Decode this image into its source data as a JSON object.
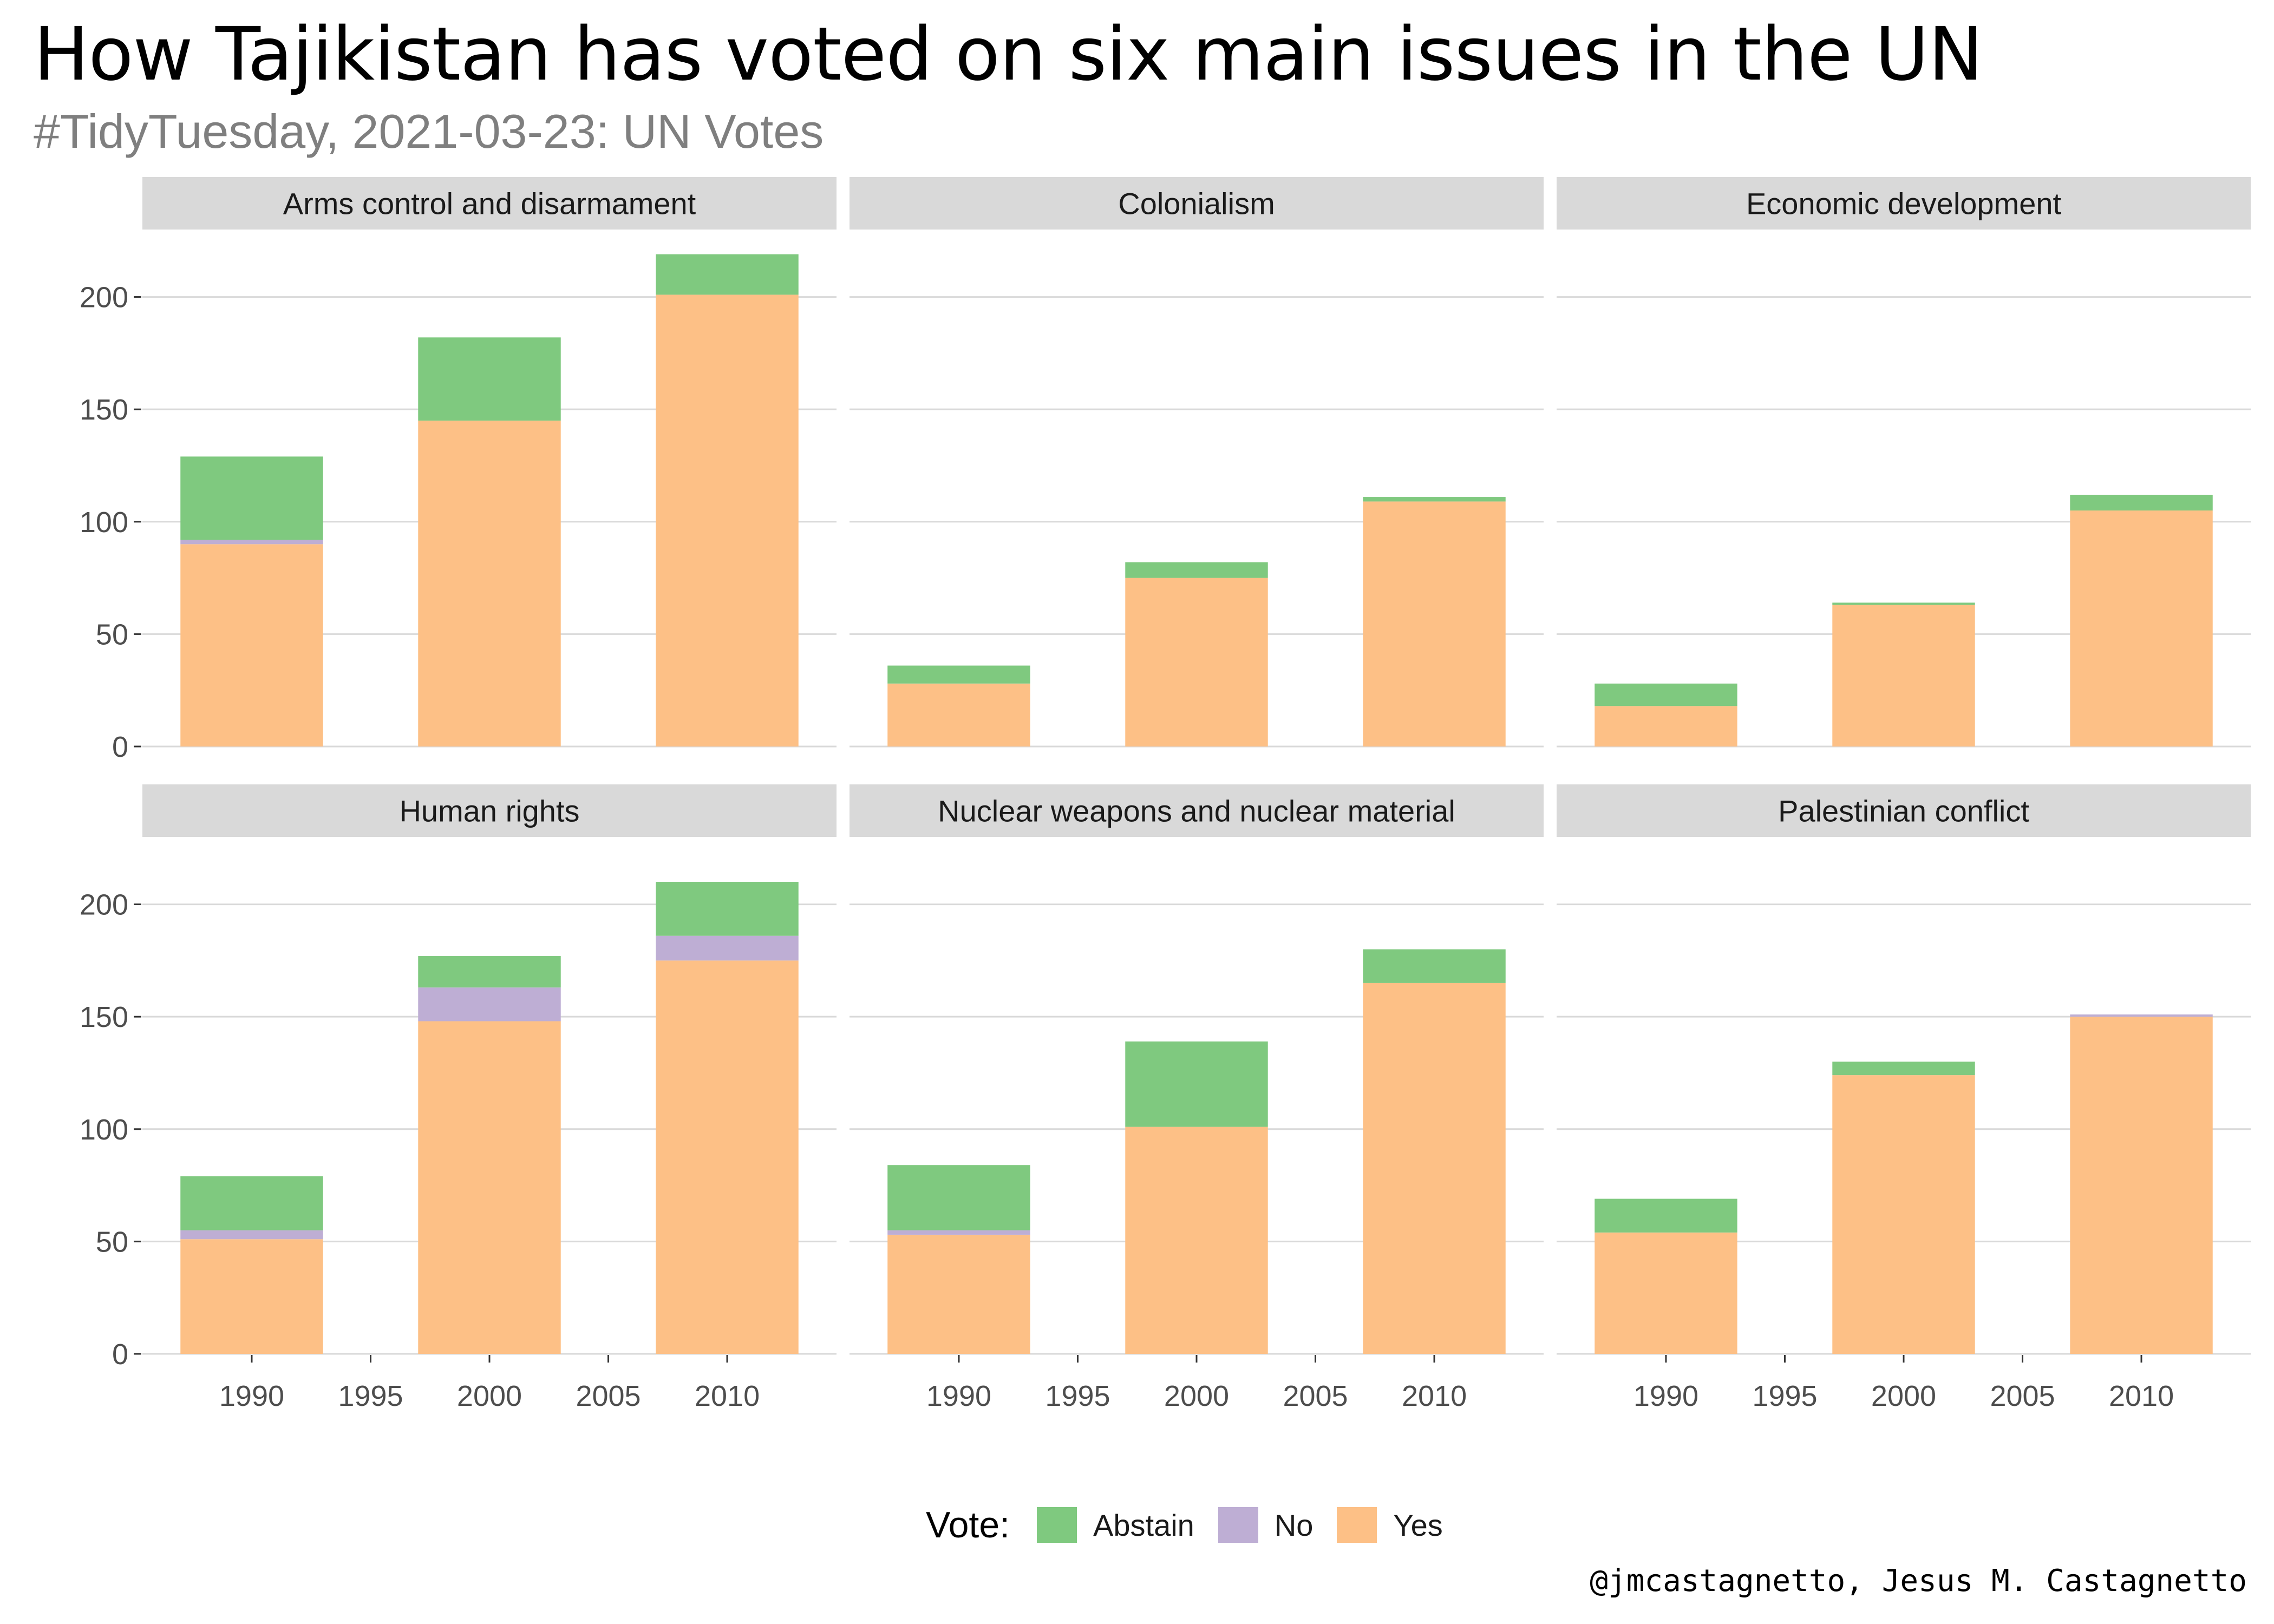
{
  "title": "How Tajikistan has voted on six main issues in the UN",
  "subtitle": "#TidyTuesday, 2021-03-23: UN Votes",
  "caption": "@jmcastagnetto, Jesus M. Castagnetto",
  "legend": {
    "title": "Vote:",
    "items": [
      {
        "label": "Abstain",
        "color": "#7fc97f"
      },
      {
        "label": "No",
        "color": "#beaed4"
      },
      {
        "label": "Yes",
        "color": "#fdc086"
      }
    ]
  },
  "chart_data": {
    "type": "bar",
    "stacked": true,
    "x": [
      1990,
      2000,
      2010
    ],
    "x_ticks": [
      "1990",
      "1995",
      "2000",
      "2005",
      "2010"
    ],
    "xlim": [
      1985.4,
      2014.6
    ],
    "y_ticks": [
      "0",
      "50",
      "100",
      "150",
      "200"
    ],
    "ylim": [
      0,
      230
    ],
    "grid": true,
    "legend_position": "bottom",
    "series_order": [
      "Yes",
      "No",
      "Abstain"
    ],
    "panels": [
      {
        "title": "Arms control and disarmament",
        "series": [
          {
            "name": "Yes",
            "values": [
              90,
              145,
              201
            ]
          },
          {
            "name": "No",
            "values": [
              2,
              0,
              0
            ]
          },
          {
            "name": "Abstain",
            "values": [
              37,
              37,
              18
            ]
          }
        ]
      },
      {
        "title": "Colonialism",
        "series": [
          {
            "name": "Yes",
            "values": [
              28,
              75,
              109
            ]
          },
          {
            "name": "No",
            "values": [
              0,
              0,
              0
            ]
          },
          {
            "name": "Abstain",
            "values": [
              8,
              7,
              2
            ]
          }
        ]
      },
      {
        "title": "Economic development",
        "series": [
          {
            "name": "Yes",
            "values": [
              18,
              63,
              105
            ]
          },
          {
            "name": "No",
            "values": [
              0,
              0,
              0
            ]
          },
          {
            "name": "Abstain",
            "values": [
              10,
              1,
              7
            ]
          }
        ]
      },
      {
        "title": "Human rights",
        "series": [
          {
            "name": "Yes",
            "values": [
              51,
              148,
              175
            ]
          },
          {
            "name": "No",
            "values": [
              4,
              15,
              11
            ]
          },
          {
            "name": "Abstain",
            "values": [
              24,
              14,
              24
            ]
          }
        ]
      },
      {
        "title": "Nuclear weapons and nuclear material",
        "series": [
          {
            "name": "Yes",
            "values": [
              53,
              101,
              165
            ]
          },
          {
            "name": "No",
            "values": [
              2,
              0,
              0
            ]
          },
          {
            "name": "Abstain",
            "values": [
              29,
              38,
              15
            ]
          }
        ]
      },
      {
        "title": "Palestinian conflict",
        "series": [
          {
            "name": "Yes",
            "values": [
              54,
              124,
              150
            ]
          },
          {
            "name": "No",
            "values": [
              0,
              0,
              1
            ]
          },
          {
            "name": "Abstain",
            "values": [
              15,
              6,
              0
            ]
          }
        ]
      }
    ]
  }
}
